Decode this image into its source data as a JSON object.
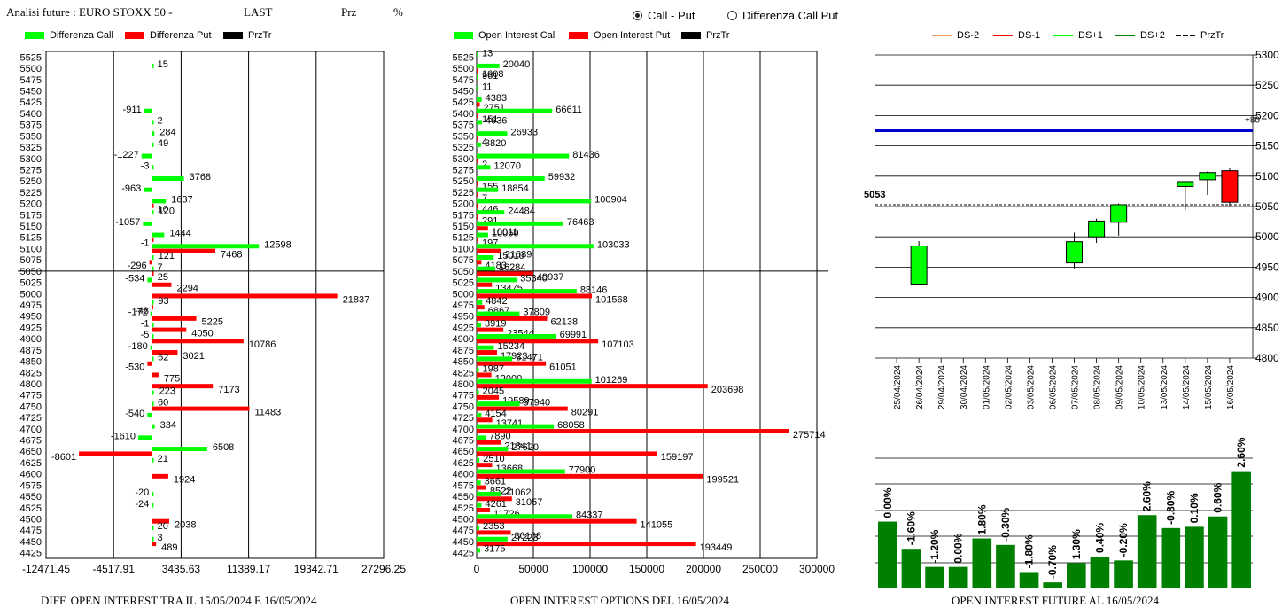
{
  "header": {
    "title": "Analisi future : EURO STOXX 50 -",
    "last": "LAST",
    "prz": "Prz",
    "pct": "%"
  },
  "radios": [
    {
      "label": "Call - Put",
      "selected": true
    },
    {
      "label": "Differenza Call Put",
      "selected": false
    }
  ],
  "colors": {
    "green": "#00ff00",
    "red": "#ff0000",
    "black": "#000000",
    "blue": "#0000cc",
    "dark_green": "#008000"
  },
  "legend1": [
    "Differenza Call",
    "Differenza Put",
    "PrzTr"
  ],
  "legend2": [
    "Open Interest Call",
    "Open Interest Put",
    "PrzTr"
  ],
  "legend3": [
    "DS-2",
    "DS-1",
    "DS+1",
    "DS+2",
    "PrzTr"
  ],
  "footers": {
    "left": "DIFF. OPEN INTEREST TRA IL 15/05/2024 E 16/05/2024",
    "middle": "OPEN INTEREST OPTIONS DEL 16/05/2024",
    "right": "OPEN INTEREST FUTURE AL 16/05/2024"
  },
  "chart_data": [
    {
      "type": "bar",
      "orientation": "horizontal",
      "strikes": [
        5525,
        5500,
        5475,
        5450,
        5425,
        5400,
        5375,
        5350,
        5325,
        5300,
        5275,
        5250,
        5225,
        5200,
        5175,
        5150,
        5125,
        5100,
        5075,
        5050,
        5025,
        5000,
        4975,
        4950,
        4925,
        4900,
        4875,
        4850,
        4825,
        4800,
        4775,
        4750,
        4725,
        4700,
        4675,
        4650,
        4625,
        4600,
        4575,
        4550,
        4525,
        4500,
        4475,
        4450,
        4425
      ],
      "series": [
        {
          "name": "Differenza Call",
          "values": [
            0,
            15,
            0,
            0,
            0,
            -911,
            2,
            284,
            49,
            -1227,
            -3,
            3768,
            -963,
            1637,
            120,
            -1057,
            1444,
            12598,
            121,
            7,
            -534,
            0,
            93,
            -172,
            -1,
            -5,
            -180,
            62,
            0,
            0,
            223,
            60,
            -540,
            334,
            -1610,
            6508,
            21,
            0,
            0,
            -20,
            -24,
            0,
            20,
            3,
            0
          ]
        },
        {
          "name": "Differenza Put",
          "values": [
            0,
            0,
            0,
            0,
            0,
            0,
            0,
            0,
            0,
            0,
            0,
            0,
            0,
            10,
            0,
            0,
            -1,
            7468,
            -296,
            25,
            2294,
            21837,
            -48,
            5225,
            4050,
            10786,
            3021,
            -530,
            775,
            7173,
            0,
            11483,
            0,
            0,
            0,
            -8601,
            0,
            1924,
            0,
            0,
            0,
            2038,
            0,
            489,
            0
          ]
        }
      ],
      "prztr": 5050,
      "xticks": [
        "-12471.45",
        "-4517.91",
        "3435.63",
        "11389.17",
        "19342.71",
        "27296.25"
      ],
      "xlim": [
        -12471.45,
        27296.25
      ]
    },
    {
      "type": "bar",
      "orientation": "horizontal",
      "strikes": [
        5525,
        5500,
        5475,
        5450,
        5425,
        5400,
        5375,
        5350,
        5325,
        5300,
        5275,
        5250,
        5225,
        5200,
        5175,
        5150,
        5125,
        5100,
        5075,
        5050,
        5025,
        5000,
        4975,
        4950,
        4925,
        4900,
        4875,
        4850,
        4825,
        4800,
        4775,
        4750,
        4725,
        4700,
        4675,
        4650,
        4625,
        4600,
        4575,
        4550,
        4525,
        4500,
        4475,
        4450,
        4425
      ],
      "series": [
        {
          "name": "Open Interest Call",
          "values": [
            13,
            20040,
            961,
            11,
            4383,
            66611,
            4636,
            26933,
            3820,
            81436,
            12070,
            59932,
            18854,
            100904,
            24484,
            76463,
            10060,
            103033,
            15010,
            16284,
            35340,
            88146,
            4842,
            37809,
            3919,
            69991,
            15234,
            31471,
            1987,
            101269,
            2045,
            37940,
            4154,
            68058,
            7890,
            27620,
            2510,
            77900,
            3661,
            21062,
            4261,
            84337,
            2353,
            27223,
            3175
          ]
        },
        {
          "name": "Open Interest Put",
          "values": [
            0,
            1008,
            0,
            0,
            2751,
            151,
            0,
            4,
            0,
            2,
            0,
            155,
            7,
            446,
            291,
            10011,
            197,
            21689,
            4183,
            49937,
            13475,
            101568,
            6867,
            62138,
            23544,
            107103,
            17923,
            61051,
            13000,
            203698,
            19589,
            80291,
            13741,
            275714,
            21341,
            159197,
            13668,
            199521,
            8522,
            31057,
            11726,
            141055,
            30108,
            193449,
            0
          ]
        }
      ],
      "prztr": 5050,
      "xticks": [
        "0",
        "50000",
        "100000",
        "150000",
        "200000",
        "250000",
        "300000"
      ],
      "xlim": [
        0,
        300000
      ]
    },
    {
      "type": "candlestick",
      "dates": [
        "25/04/2024",
        "26/04/2024",
        "29/04/2024",
        "30/04/2024",
        "01/05/2024",
        "02/05/2024",
        "03/05/2024",
        "06/05/2024",
        "07/05/2024",
        "08/05/2024",
        "09/05/2024",
        "10/05/2024",
        "13/05/2024",
        "14/05/2024",
        "15/05/2024",
        "16/05/2024"
      ],
      "candles": [
        null,
        {
          "open": 4922,
          "high": 4993,
          "low": 4920,
          "close": 4985,
          "color": "#00ff00"
        },
        null,
        null,
        null,
        null,
        null,
        null,
        {
          "open": 4957,
          "high": 5007,
          "low": 4948,
          "close": 4992,
          "color": "#00ff00"
        },
        {
          "open": 5000,
          "high": 5030,
          "low": 4990,
          "close": 5026,
          "color": "#00ff00"
        },
        {
          "open": 5024,
          "high": 5055,
          "low": 5002,
          "close": 5053,
          "color": "#00ff00"
        },
        null,
        null,
        {
          "open": 5083,
          "high": 5092,
          "low": 5044,
          "close": 5091,
          "color": "#00ff00"
        },
        {
          "open": 5094,
          "high": 5108,
          "low": 5069,
          "close": 5106,
          "color": "#00ff00"
        },
        {
          "open": 5109,
          "high": 5113,
          "low": 5051,
          "close": 5057,
          "color": "#ff0000"
        }
      ],
      "blue_line": 5175,
      "blue_line_label": "+80",
      "last_price": 5053,
      "last_price_label": "5053",
      "yticks": [
        5300,
        5250,
        5200,
        5150,
        5100,
        5050,
        5000,
        4950,
        4900,
        4850,
        4800
      ],
      "ylim": [
        4800,
        5300
      ]
    },
    {
      "type": "bar",
      "labels": [
        "0.00%",
        "-1.60%",
        "-1.20%",
        "0.00%",
        "1.80%",
        "-0.30%",
        "-1.80%",
        "-0.70%",
        "1.30%",
        "0.40%",
        "-0.20%",
        "2.60%",
        "-0.80%",
        "0.10%",
        "0.60%",
        "2.60%"
      ],
      "values": [
        0.0,
        -1.6,
        -1.2,
        0.0,
        1.8,
        -0.3,
        -1.8,
        -0.7,
        1.3,
        0.4,
        -0.2,
        2.6,
        -0.8,
        0.1,
        0.6,
        2.6
      ],
      "relative_heights": [
        0.51,
        0.3,
        0.16,
        0.16,
        0.38,
        0.33,
        0.12,
        0.04,
        0.19,
        0.24,
        0.21,
        0.56,
        0.46,
        0.47,
        0.55,
        0.9
      ],
      "color": "#008000"
    }
  ]
}
